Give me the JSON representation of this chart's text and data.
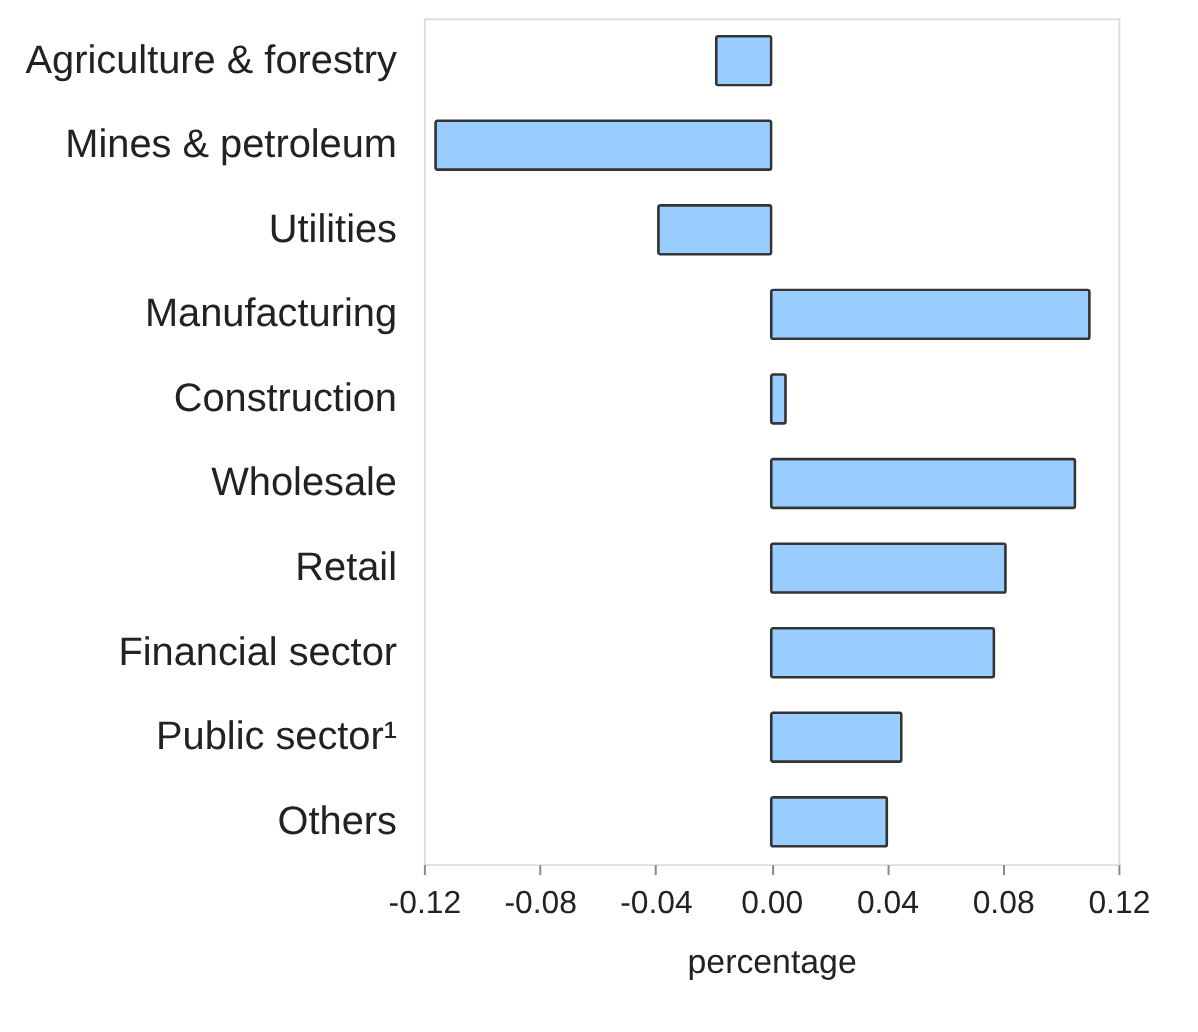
{
  "chart_data": {
    "type": "bar",
    "orientation": "horizontal",
    "xlabel": "percentage",
    "categories": [
      "Agriculture & forestry",
      "Mines & petroleum",
      "Utilities",
      "Manufacturing",
      "Construction",
      "Wholesale",
      "Retail",
      "Financial sector",
      "Public sector¹",
      "Others"
    ],
    "values": [
      -0.019,
      -0.116,
      -0.039,
      0.11,
      0.005,
      0.105,
      0.081,
      0.077,
      0.045,
      0.04
    ],
    "color": "#99ccff",
    "xlim": [
      -0.12,
      0.12
    ],
    "xticks": [
      -0.12,
      -0.08,
      -0.04,
      {
        "value": 0,
        "label": "0.00"
      },
      0.04,
      0.08,
      0.12
    ]
  }
}
